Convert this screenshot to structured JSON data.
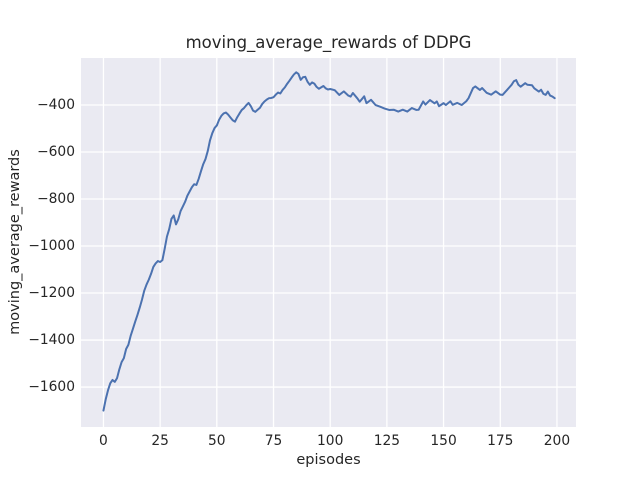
{
  "colors": {
    "figure_background": "#ffffff",
    "axes_background": "#eaeaf2",
    "grid": "#ffffff",
    "line": "#4c72b0",
    "text": "#262626"
  },
  "chart_data": {
    "type": "line",
    "title": "moving_average_rewards of DDPG",
    "xlabel": "episodes",
    "ylabel": "moving_average_rewards",
    "xlim": [
      -9.9,
      208.4
    ],
    "ylim": [
      -1770,
      -200
    ],
    "grid": true,
    "legend": null,
    "line_color": "#4c72b0",
    "line_width": 2,
    "x_ticks": [
      {
        "value": 0,
        "label": "0"
      },
      {
        "value": 25,
        "label": "25"
      },
      {
        "value": 50,
        "label": "50"
      },
      {
        "value": 75,
        "label": "75"
      },
      {
        "value": 100,
        "label": "100"
      },
      {
        "value": 125,
        "label": "125"
      },
      {
        "value": 150,
        "label": "150"
      },
      {
        "value": 175,
        "label": "175"
      },
      {
        "value": 200,
        "label": "200"
      }
    ],
    "y_ticks": [
      {
        "value": -400,
        "label": "−400"
      },
      {
        "value": -600,
        "label": "−600"
      },
      {
        "value": -800,
        "label": "−800"
      },
      {
        "value": -1000,
        "label": "−1000"
      },
      {
        "value": -1200,
        "label": "−1200"
      },
      {
        "value": -1400,
        "label": "−1400"
      },
      {
        "value": -1600,
        "label": "−1600"
      }
    ],
    "series_name": "moving_average_rewards",
    "x": [
      0,
      1,
      2,
      3,
      4,
      5,
      6,
      7,
      8,
      9,
      10,
      11,
      12,
      13,
      14,
      15,
      16,
      17,
      18,
      19,
      20,
      21,
      22,
      23,
      24,
      25,
      26,
      27,
      28,
      29,
      30,
      31,
      32,
      33,
      34,
      35,
      36,
      37,
      38,
      39,
      40,
      41,
      42,
      43,
      44,
      45,
      46,
      47,
      48,
      49,
      50,
      51,
      52,
      53,
      54,
      55,
      56,
      57,
      58,
      59,
      60,
      61,
      62,
      63,
      64,
      65,
      66,
      67,
      68,
      69,
      70,
      71,
      72,
      73,
      74,
      75,
      76,
      77,
      78,
      79,
      80,
      81,
      82,
      83,
      84,
      85,
      86,
      87,
      88,
      89,
      90,
      91,
      92,
      93,
      94,
      95,
      96,
      97,
      98,
      99,
      100,
      102,
      104,
      106,
      108,
      109,
      110,
      112,
      113,
      115,
      116,
      118,
      120,
      122,
      124,
      126,
      128,
      130,
      132,
      134,
      136,
      138,
      139,
      141,
      142,
      144,
      145,
      146,
      147,
      148,
      150,
      151,
      153,
      154,
      156,
      158,
      160,
      161,
      163,
      164,
      166,
      167,
      169,
      171,
      173,
      175,
      176,
      178,
      179,
      180,
      181,
      182,
      183,
      184,
      186,
      187,
      189,
      190,
      192,
      193,
      194,
      195,
      196,
      197,
      198,
      199
    ],
    "y": [
      -1700,
      -1652,
      -1614,
      -1584,
      -1570,
      -1578,
      -1562,
      -1525,
      -1494,
      -1477,
      -1438,
      -1420,
      -1382,
      -1352,
      -1322,
      -1293,
      -1262,
      -1228,
      -1190,
      -1164,
      -1143,
      -1118,
      -1089,
      -1074,
      -1064,
      -1068,
      -1060,
      -1012,
      -960,
      -928,
      -884,
      -870,
      -908,
      -886,
      -852,
      -832,
      -812,
      -786,
      -768,
      -750,
      -737,
      -740,
      -714,
      -682,
      -652,
      -630,
      -596,
      -550,
      -520,
      -498,
      -487,
      -463,
      -446,
      -436,
      -432,
      -441,
      -453,
      -465,
      -471,
      -452,
      -436,
      -421,
      -413,
      -401,
      -391,
      -405,
      -424,
      -429,
      -420,
      -412,
      -396,
      -385,
      -377,
      -371,
      -370,
      -367,
      -356,
      -347,
      -351,
      -336,
      -325,
      -310,
      -297,
      -283,
      -270,
      -261,
      -268,
      -293,
      -282,
      -280,
      -301,
      -314,
      -304,
      -309,
      -323,
      -331,
      -325,
      -319,
      -329,
      -334,
      -332,
      -337,
      -357,
      -342,
      -360,
      -364,
      -349,
      -372,
      -386,
      -363,
      -392,
      -378,
      -400,
      -407,
      -415,
      -421,
      -420,
      -428,
      -420,
      -428,
      -413,
      -421,
      -420,
      -385,
      -398,
      -379,
      -386,
      -393,
      -385,
      -405,
      -392,
      -400,
      -384,
      -399,
      -391,
      -400,
      -384,
      -371,
      -328,
      -321,
      -336,
      -328,
      -348,
      -356,
      -342,
      -356,
      -357,
      -336,
      -325,
      -314,
      -299,
      -294,
      -314,
      -322,
      -307,
      -314,
      -316,
      -329,
      -343,
      -335,
      -352,
      -357,
      -343,
      -360,
      -364,
      -371
    ]
  }
}
